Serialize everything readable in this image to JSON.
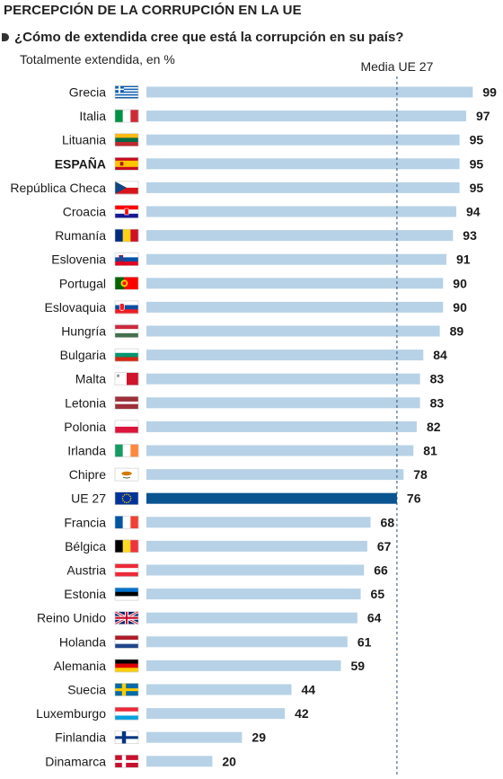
{
  "header": {
    "title": "PERCEPCIÓN DE LA CORRUPCIÓN EN LA UE",
    "subtitle": "¿Cómo de extendida cree que está la corrupción en su país?",
    "unit_label": "Totalmente extendida, en %"
  },
  "chart_data": {
    "type": "bar",
    "orientation": "horizontal",
    "title": "PERCEPCIÓN DE LA CORRUPCIÓN EN LA UE",
    "subtitle": "¿Cómo de extendida cree que está la corrupción en su país?",
    "xlabel": "Totalmente extendida, en %",
    "ylabel": "",
    "xlim": [
      0,
      100
    ],
    "grid": false,
    "legend": "none",
    "reference_line": {
      "label": "Media UE 27",
      "value": 76
    },
    "categories": [
      "Grecia",
      "Italia",
      "Lituania",
      "ESPAÑA",
      "República Checa",
      "Croacia",
      "Rumanía",
      "Eslovenia",
      "Portugal",
      "Eslovaquia",
      "Hungría",
      "Bulgaria",
      "Malta",
      "Letonia",
      "Polonia",
      "Irlanda",
      "Chipre",
      "UE 27",
      "Francia",
      "Bélgica",
      "Austria",
      "Estonia",
      "Reino Unido",
      "Holanda",
      "Alemania",
      "Suecia",
      "Luxemburgo",
      "Finlandia",
      "Dinamarca"
    ],
    "values": [
      99,
      97,
      95,
      95,
      95,
      94,
      93,
      91,
      90,
      90,
      89,
      84,
      83,
      83,
      82,
      81,
      78,
      76,
      68,
      67,
      66,
      65,
      64,
      61,
      59,
      44,
      42,
      29,
      20
    ],
    "flags": [
      "flag-greece-icon",
      "flag-italy-icon",
      "flag-lithuania-icon",
      "flag-spain-icon",
      "flag-czech-republic-icon",
      "flag-croatia-icon",
      "flag-romania-icon",
      "flag-slovenia-icon",
      "flag-portugal-icon",
      "flag-slovakia-icon",
      "flag-hungary-icon",
      "flag-bulgaria-icon",
      "flag-malta-icon",
      "flag-latvia-icon",
      "flag-poland-icon",
      "flag-ireland-icon",
      "flag-cyprus-icon",
      "flag-eu-icon",
      "flag-france-icon",
      "flag-belgium-icon",
      "flag-austria-icon",
      "flag-estonia-icon",
      "flag-united-kingdom-icon",
      "flag-netherlands-icon",
      "flag-germany-icon",
      "flag-sweden-icon",
      "flag-luxembourg-icon",
      "flag-finland-icon",
      "flag-denmark-icon"
    ],
    "bold_categories": [
      "ESPAÑA"
    ],
    "highlight_category": "UE 27",
    "colors": {
      "bar": "#b7d2e6",
      "highlight_bar": "#0a5490",
      "reference_line": "#2a4f7a",
      "value_text": "#1a1a1a"
    }
  }
}
